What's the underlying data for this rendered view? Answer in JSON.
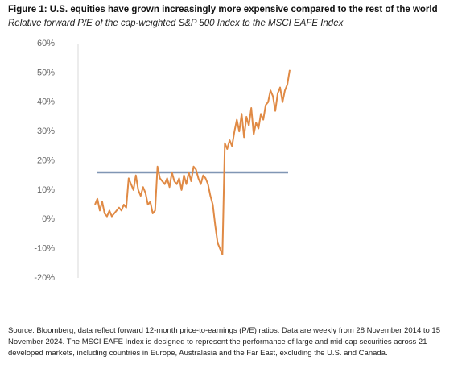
{
  "chart_data": {
    "type": "line",
    "title": "Figure 1: U.S. equities have grown increasingly more expensive compared to the rest of the world",
    "subtitle": "Relative forward P/E of the cap-weighted S&P 500 Index to the MSCI EAFE Index",
    "categories": [
      null,
      null,
      null,
      null,
      null,
      null,
      null,
      null,
      null,
      null,
      null,
      null,
      null,
      null,
      null,
      null,
      null,
      null,
      null,
      null,
      null,
      null,
      null,
      null,
      null,
      null,
      null,
      null,
      null,
      null,
      null,
      null,
      null,
      null,
      null,
      null,
      null,
      null,
      null,
      null,
      null,
      null,
      null,
      null,
      null,
      null,
      null,
      null,
      null,
      null,
      null,
      null,
      null,
      null,
      null,
      null,
      null,
      null,
      null,
      null,
      null,
      null,
      null,
      null,
      null,
      null,
      null,
      null,
      null,
      null,
      null,
      null,
      null,
      null,
      null,
      null,
      null,
      null,
      null,
      null,
      null,
      null
    ],
    "series": [
      {
        "color": "#e08a45",
        "values": [
          5,
          7,
          3,
          6,
          2,
          1,
          3,
          1,
          2,
          3,
          4,
          3,
          5,
          4,
          14,
          12,
          10,
          15,
          10,
          8,
          11,
          9,
          5,
          6,
          2,
          3,
          18,
          14,
          13,
          12,
          14,
          11,
          16,
          13,
          12,
          14,
          10,
          15,
          12,
          16,
          13,
          18,
          17,
          14,
          12,
          15,
          14,
          12,
          8,
          5,
          -2,
          -8,
          -10,
          -12,
          26,
          24,
          27,
          25,
          30,
          34,
          30,
          36,
          28,
          35,
          32,
          38,
          29,
          33,
          31,
          36,
          34,
          39,
          40,
          44,
          42,
          37,
          43,
          45,
          40,
          44,
          46,
          51
        ]
      }
    ],
    "reference_line": {
      "value": 16,
      "color": "#8096b4"
    },
    "ylim": [
      -20,
      60
    ],
    "yticks": [
      {
        "value": -20,
        "label": "-20%"
      },
      {
        "value": -10,
        "label": "-10%"
      },
      {
        "value": 0,
        "label": "0%"
      },
      {
        "value": 10,
        "label": "10%"
      },
      {
        "value": 20,
        "label": "20%"
      },
      {
        "value": 30,
        "label": "30%"
      },
      {
        "value": 40,
        "label": "40%"
      },
      {
        "value": 50,
        "label": "50%"
      },
      {
        "value": 60,
        "label": "60%"
      }
    ],
    "grid": false,
    "source": "Source: Bloomberg; data reflect forward 12-month price-to-earnings (P/E) ratios. Data are weekly from 28 November 2014 to 15 November 2024. The MSCI EAFE Index is designed to represent the performance of large and mid-cap securities across 21 developed markets, including countries in Europe, Australasia and the Far East, excluding the U.S. and Canada."
  }
}
